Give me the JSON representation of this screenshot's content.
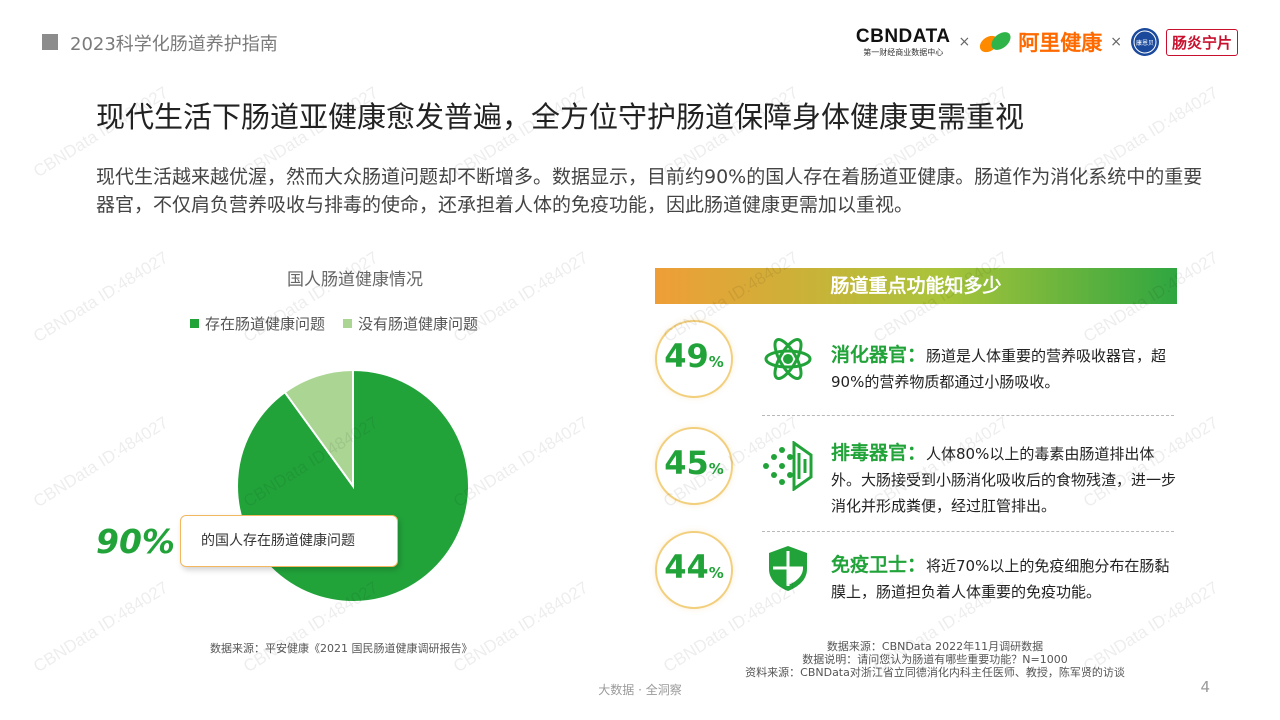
{
  "header": {
    "report_title": "2023科学化肠道养护指南",
    "logos": {
      "cbn_word": "CBNDATA",
      "cbn_sub": "第一财经商业数据中心",
      "times": "×",
      "alihealth_word": "阿里健康",
      "yanping_seal": "康恩贝",
      "yanping_name": "肠炎宁片"
    }
  },
  "headline": "现代生活下肠道亚健康愈发普遍，全方位守护肠道保障身体健康更需重视",
  "intro": "现代生活越来越优渥，然而大众肠道问题却不断增多。数据显示，目前约90%的国人存在着肠道亚健康。肠道作为消化系统中的重要器官，不仅肩负营养吸收与排毒的使命，还承担着人体的免疫功能，因此肠道健康更需加以重视。",
  "chart_data": [
    {
      "type": "pie",
      "title": "国人肠道健康情况",
      "categories": [
        "存在肠道健康问题",
        "没有肠道健康问题"
      ],
      "values": [
        90,
        10
      ],
      "unit": "%",
      "colors": [
        "#22a33a",
        "#aad593"
      ],
      "legend": "top",
      "callout": {
        "value": "90%",
        "text": "的国人存在肠道健康问题"
      }
    },
    {
      "type": "table",
      "title": "肠道重点功能知多少",
      "rows": [
        {
          "value": 49,
          "value_label": "49",
          "unit": "%",
          "icon": "atom-icon",
          "name": "消化器官：",
          "desc": "肠道是人体重要的营养吸收器官，超90%的营养物质都通过小肠吸收。"
        },
        {
          "value": 45,
          "value_label": "45",
          "unit": "%",
          "icon": "detox-flow-icon",
          "name": "排毒器官：",
          "desc": "人体80%以上的毒素由肠道排出体外。大肠接受到小肠消化吸收后的食物残渣，进一步消化并形成粪便，经过肛管排出。"
        },
        {
          "value": 44,
          "value_label": "44",
          "unit": "%",
          "icon": "shield-icon",
          "name": "免疫卫士：",
          "desc": "将近70%以上的免疫细胞分布在肠黏膜上，肠道担负着人体重要的免疫功能。"
        }
      ]
    }
  ],
  "sources": {
    "left": "数据来源：平安健康《2021 国民肠道健康调研报告》",
    "right_line1": "数据来源：CBNData 2022年11月调研数据",
    "right_line2": "数据说明：请问您认为肠道有哪些重要功能？N=1000",
    "right_line3": "资料来源：CBNData对浙江省立同德消化内科主任医师、教授，陈军贤的访谈"
  },
  "footer": {
    "tagline": "大数据 · 全洞察",
    "page_number": "4"
  },
  "watermark": "CBNData ID:484027",
  "colors": {
    "accent_green": "#22a33a",
    "light_green": "#aad593",
    "ring_gold": "#f2cf7d"
  }
}
